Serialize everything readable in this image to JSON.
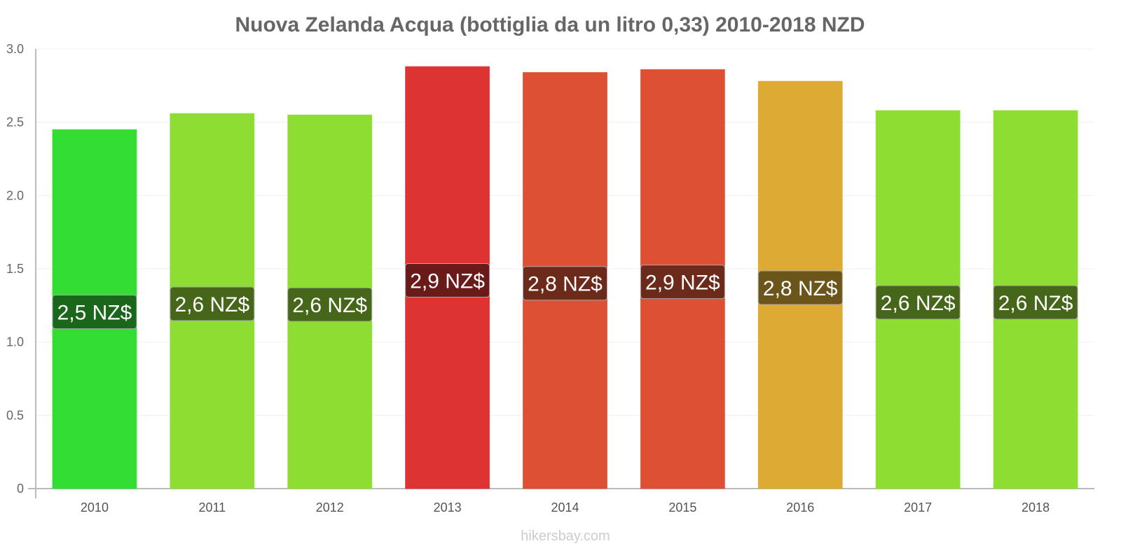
{
  "chart_data": {
    "type": "bar",
    "title": "Nuova Zelanda Acqua (bottiglia da un litro 0,33) 2010-2018 NZD",
    "xlabel": "",
    "ylabel": "",
    "ylim": [
      0,
      3.0
    ],
    "yticks": [
      "0",
      "0.5",
      "1.0",
      "1.5",
      "2.0",
      "2.5",
      "3.0"
    ],
    "categories": [
      "2010",
      "2011",
      "2012",
      "2013",
      "2014",
      "2015",
      "2016",
      "2017",
      "2018"
    ],
    "values": [
      2.45,
      2.56,
      2.55,
      2.88,
      2.84,
      2.86,
      2.78,
      2.58,
      2.58
    ],
    "labels": [
      "2,5 NZ$",
      "2,6 NZ$",
      "2,6 NZ$",
      "2,9 NZ$",
      "2,8 NZ$",
      "2,9 NZ$",
      "2,8 NZ$",
      "2,6 NZ$",
      "2,6 NZ$"
    ],
    "colors": [
      "#33dd33",
      "#8ddd33",
      "#8ddd33",
      "#dd3333",
      "#dd5033",
      "#dd5033",
      "#ddaa33",
      "#8ddd33",
      "#8ddd33"
    ],
    "label_colors": [
      "#1a661a",
      "#46661a",
      "#46661a",
      "#6b1a1a",
      "#6b2a1a",
      "#6b2a1a",
      "#6b551a",
      "#46661a",
      "#46661a"
    ],
    "grid": true
  },
  "watermark": "hikersbay.com"
}
